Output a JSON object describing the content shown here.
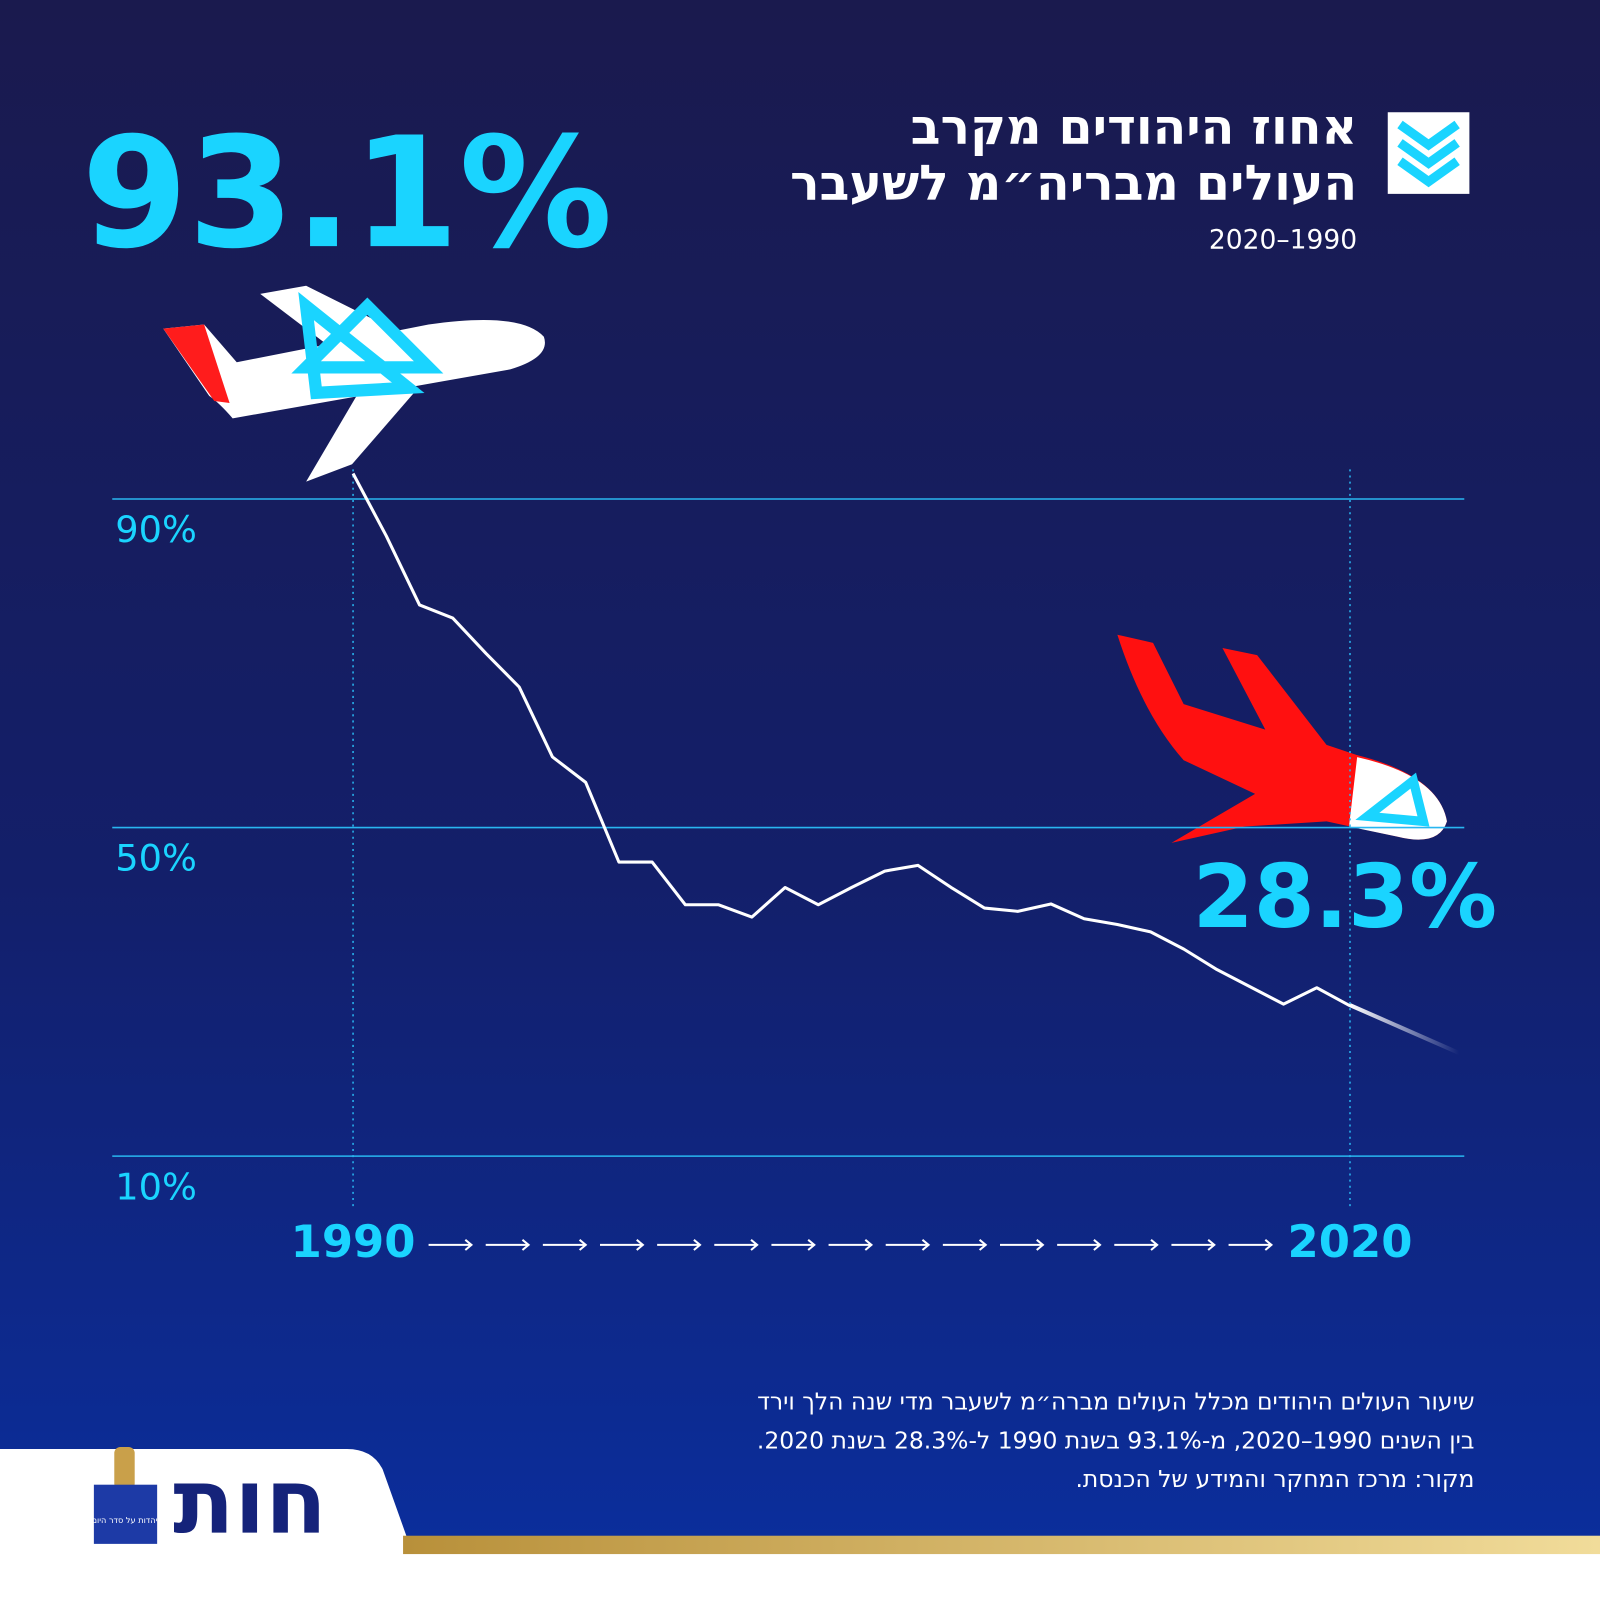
{
  "chart_data": {
    "type": "line",
    "title": [
      "אחוז היהודים מקרב",
      "העולים מבריה״מ לשעבר"
    ],
    "subtitle": "2020–1990",
    "x": [
      1990,
      1991,
      1992,
      1993,
      1994,
      1995,
      1996,
      1997,
      1998,
      1999,
      2000,
      2001,
      2002,
      2003,
      2004,
      2005,
      2006,
      2007,
      2008,
      2009,
      2010,
      2011,
      2012,
      2013,
      2014,
      2015,
      2016,
      2017,
      2018,
      2019,
      2020
    ],
    "series": [
      {
        "name": "אחוז היהודים",
        "color": "#ffffff",
        "values": [
          93.1,
          85.5,
          77.1,
          75.5,
          71.2,
          67.1,
          58.6,
          55.5,
          45.8,
          45.8,
          40.6,
          40.6,
          39.1,
          42.7,
          40.6,
          42.7,
          44.7,
          45.4,
          42.7,
          40.2,
          39.8,
          40.7,
          38.9,
          38.2,
          37.3,
          35.2,
          32.7,
          30.6,
          28.5,
          30.5,
          28.3
        ],
        "value_labels": [
          "93.1%",
          null,
          null,
          null,
          null,
          null,
          null,
          null,
          null,
          null,
          null,
          null,
          null,
          null,
          null,
          null,
          null,
          null,
          null,
          null,
          null,
          null,
          null,
          null,
          null,
          null,
          null,
          null,
          null,
          null,
          "28.3%"
        ]
      }
    ],
    "xlim": [
      1990,
      2020
    ],
    "xticks": [
      1990,
      2020
    ],
    "ylim": [
      10,
      90
    ],
    "yticks": [
      {
        "value": 10,
        "label": "10%"
      },
      {
        "value": 50,
        "label": "50%"
      },
      {
        "value": 90,
        "label": "90%"
      }
    ],
    "grid": true,
    "notes": [
      "שיעור העולים היהודים מכלל העולים מברה״מ לשעבר מדי שנה הלך וירד",
      "בין השנים 1990–2020, מ-93.1% בשנת 1990 ל-28.3% בשנת 2020.",
      "מקור: מרכז המחקר והמידע של הכנסת."
    ]
  },
  "logo": {
    "text": "חות",
    "tagline": "יהדות על סדר היום"
  }
}
